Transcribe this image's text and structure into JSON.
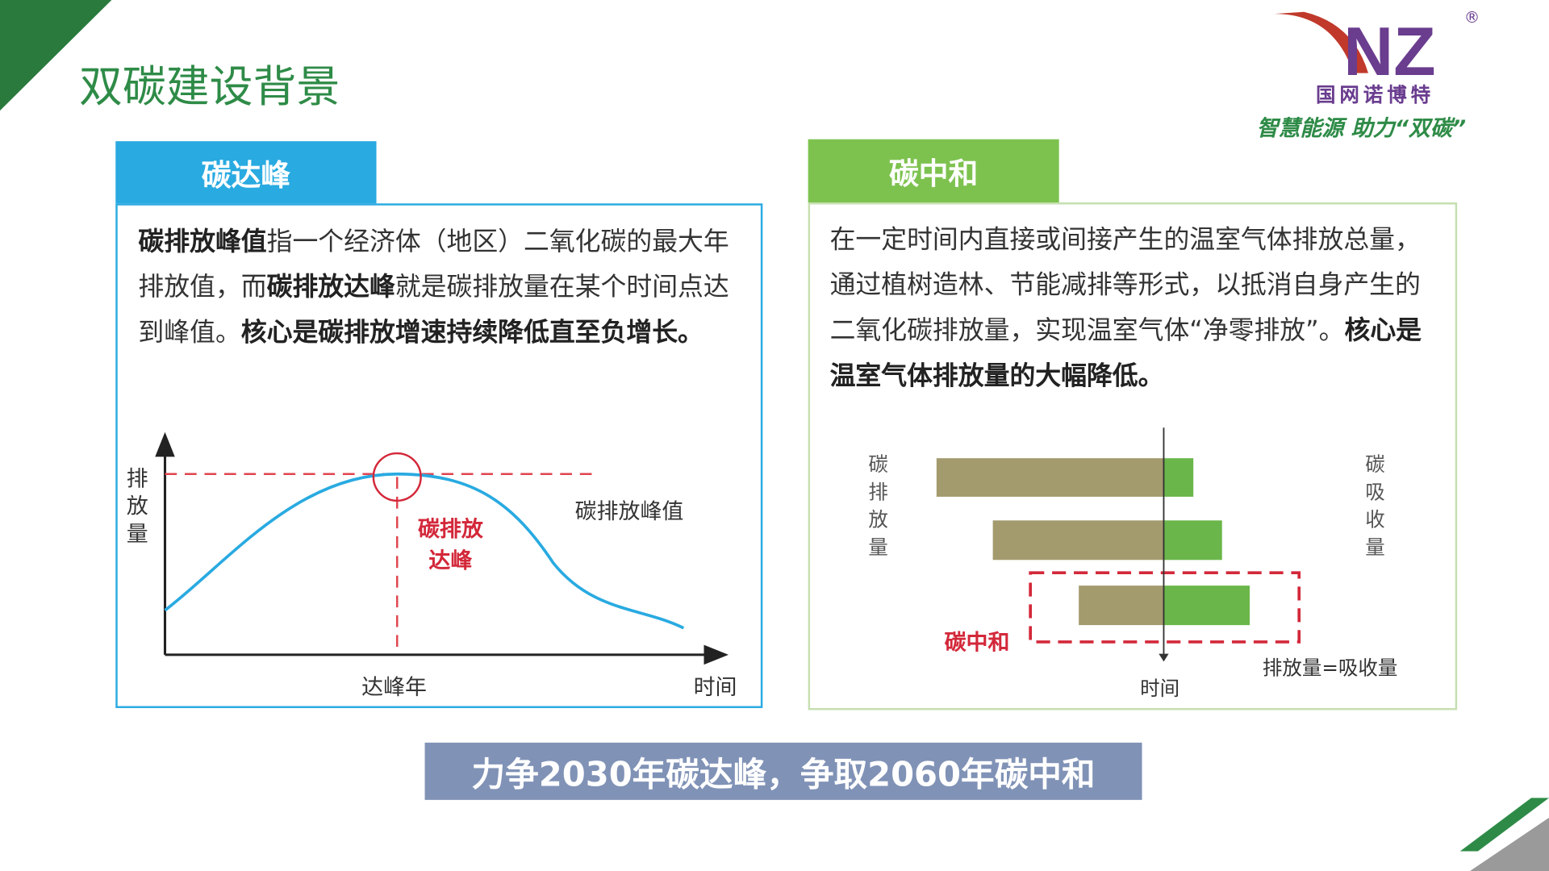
{
  "title": "双碳建设背景",
  "logo": {
    "brand": "NZ",
    "registered": "®",
    "company": "国网诺博特",
    "slogan": "智慧能源 助力“双碳”"
  },
  "peak": {
    "header": "碳达峰",
    "para": [
      {
        "t": "碳排放峰值",
        "b": true
      },
      {
        "t": "指一个经济体（地区）二氧化碳的最大年排放值，而",
        "b": false
      },
      {
        "t": "碳排放达峰",
        "b": true
      },
      {
        "t": "就是碳排放量在某个时间点达到峰值。",
        "b": false
      },
      {
        "t": "核心是碳排放增速持续降低直至负增长。",
        "b": true
      }
    ],
    "chart": {
      "ylabel": "排放量",
      "xlabel": "时间",
      "peak_year_label": "达峰年",
      "peak_value_label": "碳排放峰值",
      "peak_point_label_1": "碳排放",
      "peak_point_label_2": "达峰"
    }
  },
  "neutral": {
    "header": "碳中和",
    "para": [
      {
        "t": "在一定时间内直接或间接产生的温室气体排放总量，通过植树造林、节能减排等形式，以抵消自身产生的二氧化碳排放量，实现温室气体“净零排放”。",
        "b": false,
        "boldtail": "净零排放”"
      },
      {
        "t": "核心是温室气体排放量的大幅降低。",
        "b": true
      }
    ],
    "chart": {
      "left_label": "碳排放量",
      "right_label": "碳吸收量",
      "xlabel": "时间",
      "neutral_label": "碳中和",
      "equal_label": "排放量=吸收量",
      "colors": {
        "emission": "#a39a6e",
        "absorption": "#6ab64a",
        "highlight": "#d3283a"
      }
    }
  },
  "banner": "力争2030年碳达峰，争取2060年碳中和",
  "colors": {
    "title": "#2e8b47",
    "peak_tab": "#29aae1",
    "neutral_tab": "#7dc24f",
    "banner": "#8092b6"
  }
}
